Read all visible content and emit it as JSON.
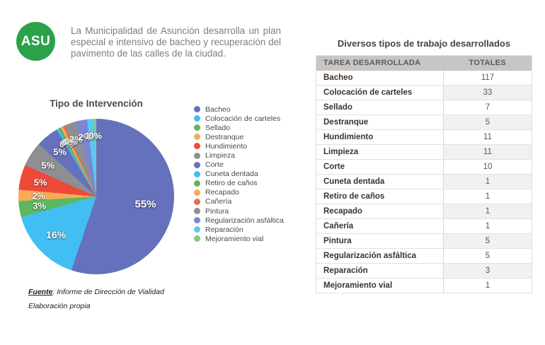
{
  "logo": {
    "text": "ASU",
    "bg_color": "#2ba24a"
  },
  "intro": "La Municipalidad de Asunción desarrolla un plan especial e intensivo de bacheo y recuperación del pavimento de las calles de la ciudad.",
  "pie_title": "Tipo de Intervención",
  "source": {
    "label": "Fuente",
    "rest": ": Informe de Dirección de Vialidad",
    "line2": "Elaboración propia"
  },
  "table_title": "Diversos tipos de trabajo desarrollados",
  "chart_data": [
    {
      "type": "pie",
      "title": "Tipo de Intervención",
      "legend_position": "right",
      "direction": "clockwise",
      "start_angle_deg": 0,
      "categories": [
        "Bacheo",
        "Colocación de carteles",
        "Sellado",
        "Destranque",
        "Hundimiento",
        "Limpieza",
        "Corte",
        "Cuneta dentada",
        "Retiro de caños",
        "Recapado",
        "Cañería",
        "Pintura",
        "Regularización asfáltica",
        "Reparación",
        "Mejoramiento vial"
      ],
      "values": [
        117,
        33,
        7,
        5,
        11,
        11,
        10,
        1,
        1,
        1,
        1,
        5,
        5,
        3,
        1
      ],
      "percent_labels": [
        "55%",
        "16%",
        "3%",
        "2%",
        "5%",
        "5%",
        "5%",
        "0%",
        "0%",
        "0%",
        "0%",
        "2%",
        "2%",
        "1%",
        "0%"
      ],
      "colors": [
        "#6671bd",
        "#41bff2",
        "#5cb85f",
        "#f8ab55",
        "#ee4a3a",
        "#8e8e93",
        "#6671bd",
        "#41bff2",
        "#5cb85f",
        "#f8ab55",
        "#ec6a4c",
        "#8e8e93",
        "#7d87cf",
        "#5ac8f5",
        "#86c97d"
      ]
    },
    {
      "type": "table",
      "title": "Diversos tipos de trabajo desarrollados",
      "columns": [
        "TAREA DESARROLLADA",
        "TOTALES"
      ],
      "rows": [
        [
          "Bacheo",
          117
        ],
        [
          "Colocación de carteles",
          33
        ],
        [
          "Sellado",
          7
        ],
        [
          "Destranque",
          5
        ],
        [
          "Hundimiento",
          11
        ],
        [
          "Limpieza",
          11
        ],
        [
          "Corte",
          10
        ],
        [
          "Cuneta dentada",
          1
        ],
        [
          "Retiro de caños",
          1
        ],
        [
          "Recapado",
          1
        ],
        [
          "Cañería",
          1
        ],
        [
          "Pintura",
          5
        ],
        [
          "Regularización asfáltica",
          5
        ],
        [
          "Reparación",
          3
        ],
        [
          "Mejoramiento vial",
          1
        ]
      ]
    }
  ]
}
